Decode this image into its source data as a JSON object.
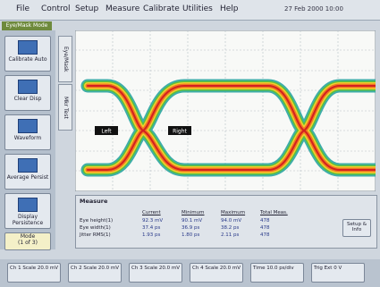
{
  "menu": [
    "File",
    "Control",
    "Setup",
    "Measure",
    "Calibrate",
    "Utilities",
    "Help"
  ],
  "datetime": "27 Feb 2000 10:00",
  "mode_label": "Eye/Mask Mode",
  "side_buttons": [
    "Calibrate Auto",
    "Clear Disp",
    "Waveform",
    "Average Persist",
    "Display Persistence"
  ],
  "mode_box": [
    "Mode",
    "(1 of 3)"
  ],
  "tabs": [
    "Eye/Mask",
    "Mkr Test"
  ],
  "markers": [
    "Left",
    "Right"
  ],
  "measure": {
    "tab": "Measure",
    "columns": [
      "Current",
      "Minimum",
      "Maximum",
      "Total Meas."
    ],
    "rows": [
      {
        "label": "Eye height(1)",
        "cells": [
          "92.3 mV",
          "90.1 mV",
          "94.0 mV",
          "478"
        ]
      },
      {
        "label": "Eye width(1)",
        "cells": [
          "37.4 ps",
          "36.9 ps",
          "38.2 ps",
          "478"
        ]
      },
      {
        "label": "Jitter RMS(1)",
        "cells": [
          "1.93 ps",
          "1.80 ps",
          "2.11 ps",
          "478"
        ]
      }
    ],
    "setup": "Setup & Info"
  },
  "bottom_buttons": [
    "Ch 1 Scale 20.0 mV",
    "Ch 2 Scale 20.0 mV",
    "Ch 3 Scale 20.0 mV",
    "Ch 4 Scale 20.0 mV",
    "Time 10.0 ps/div",
    "Trig Ext 0 V"
  ]
}
